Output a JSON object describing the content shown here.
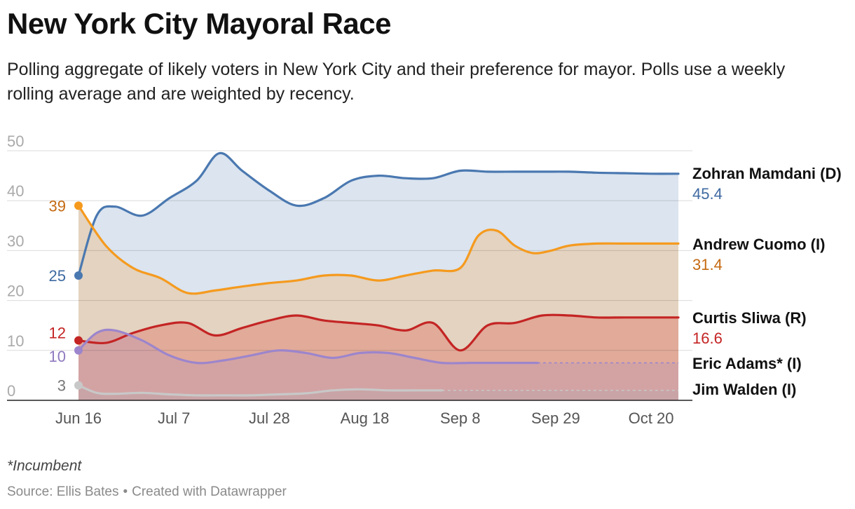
{
  "title": "New York City Mayoral Race",
  "subtitle": "Polling aggregate of likely voters in New York City and their preference for mayor. Polls use a weekly rolling average and are weighted by recency.",
  "footnote": "*Incumbent",
  "source": {
    "text": "Source: Ellis Bates",
    "separator": "•",
    "credit": "Created with Datawrapper"
  },
  "chart_data": {
    "type": "area",
    "title": "New York City Mayoral Race",
    "xlabel": "",
    "ylabel": "",
    "ylim": [
      0,
      50
    ],
    "yticks": [
      0,
      10,
      20,
      30,
      40,
      50
    ],
    "xlim": [
      0,
      132
    ],
    "x_unit": "days since Jun 16",
    "xticks": [
      {
        "x": 0,
        "label": "Jun 16"
      },
      {
        "x": 21,
        "label": "Jul 7"
      },
      {
        "x": 42,
        "label": "Jul 28"
      },
      {
        "x": 63,
        "label": "Aug 18"
      },
      {
        "x": 84,
        "label": "Sep 8"
      },
      {
        "x": 105,
        "label": "Sep 29"
      },
      {
        "x": 126,
        "label": "Oct 20"
      }
    ],
    "series": [
      {
        "name": "Zohran Mamdani (D)",
        "color": "#4a78b0",
        "fill": "#dbe4ef",
        "start_label": "25",
        "end_label": "45.4",
        "points": [
          [
            0,
            25
          ],
          [
            4,
            37
          ],
          [
            8,
            38.8
          ],
          [
            14,
            37
          ],
          [
            20,
            40.5
          ],
          [
            26,
            44
          ],
          [
            31,
            49.5
          ],
          [
            36,
            46
          ],
          [
            42,
            42
          ],
          [
            48,
            39
          ],
          [
            54,
            40.5
          ],
          [
            60,
            44
          ],
          [
            66,
            45
          ],
          [
            72,
            44.5
          ],
          [
            78,
            44.5
          ],
          [
            84,
            46
          ],
          [
            90,
            45.8
          ],
          [
            96,
            45.8
          ],
          [
            102,
            45.8
          ],
          [
            108,
            45.8
          ],
          [
            114,
            45.6
          ],
          [
            120,
            45.5
          ],
          [
            126,
            45.4
          ],
          [
            132,
            45.4
          ]
        ]
      },
      {
        "name": "Andrew Cuomo (I)",
        "color": "#f59a1e",
        "fill": "#e3d3c0",
        "start_label": "39",
        "end_label": "31.4",
        "points": [
          [
            0,
            39
          ],
          [
            6,
            31
          ],
          [
            12,
            26.5
          ],
          [
            18,
            24.5
          ],
          [
            24,
            21.5
          ],
          [
            30,
            22
          ],
          [
            36,
            22.8
          ],
          [
            42,
            23.5
          ],
          [
            48,
            24
          ],
          [
            54,
            25
          ],
          [
            60,
            25
          ],
          [
            66,
            24
          ],
          [
            72,
            25
          ],
          [
            78,
            26
          ],
          [
            84,
            26.5
          ],
          [
            88,
            33
          ],
          [
            92,
            34
          ],
          [
            96,
            31
          ],
          [
            100,
            29.5
          ],
          [
            104,
            30
          ],
          [
            108,
            31
          ],
          [
            114,
            31.4
          ],
          [
            120,
            31.4
          ],
          [
            126,
            31.4
          ],
          [
            132,
            31.4
          ]
        ]
      },
      {
        "name": "Curtis Sliwa (R)",
        "color": "#c42424",
        "fill": "#e1aa99",
        "start_label": "12",
        "end_label": "16.6",
        "points": [
          [
            0,
            12
          ],
          [
            6,
            11.5
          ],
          [
            12,
            13.5
          ],
          [
            18,
            15
          ],
          [
            24,
            15.5
          ],
          [
            30,
            13
          ],
          [
            36,
            14.5
          ],
          [
            42,
            16
          ],
          [
            48,
            17
          ],
          [
            54,
            16
          ],
          [
            60,
            15.5
          ],
          [
            66,
            15
          ],
          [
            72,
            14
          ],
          [
            78,
            15.5
          ],
          [
            84,
            10
          ],
          [
            90,
            15
          ],
          [
            96,
            15.5
          ],
          [
            102,
            17
          ],
          [
            108,
            17
          ],
          [
            114,
            16.6
          ],
          [
            120,
            16.6
          ],
          [
            126,
            16.6
          ],
          [
            132,
            16.6
          ]
        ]
      },
      {
        "name": "Eric Adams* (I)",
        "color": "#9c85cc",
        "fill": "#d3a3a4",
        "start_label": "10",
        "end_label": "",
        "line_end": 101,
        "extends_to": 132,
        "points": [
          [
            0,
            10
          ],
          [
            4,
            13.5
          ],
          [
            8,
            14
          ],
          [
            14,
            12
          ],
          [
            20,
            9
          ],
          [
            26,
            7.5
          ],
          [
            32,
            8
          ],
          [
            38,
            9
          ],
          [
            44,
            10
          ],
          [
            50,
            9.5
          ],
          [
            56,
            8.5
          ],
          [
            62,
            9.5
          ],
          [
            68,
            9.5
          ],
          [
            74,
            8.5
          ],
          [
            80,
            7.5
          ],
          [
            86,
            7.5
          ],
          [
            92,
            7.5
          ],
          [
            96,
            7.5
          ],
          [
            101,
            7.5
          ]
        ]
      },
      {
        "name": "Jim Walden (I)",
        "color": "#c8c8c8",
        "fill": "#c9a4a6",
        "start_label": "3",
        "end_label": "",
        "line_end": 80,
        "extends_to": 132,
        "points": [
          [
            0,
            3
          ],
          [
            4,
            1.5
          ],
          [
            8,
            1.3
          ],
          [
            14,
            1.5
          ],
          [
            20,
            1.2
          ],
          [
            26,
            1
          ],
          [
            32,
            1
          ],
          [
            38,
            1
          ],
          [
            44,
            1.2
          ],
          [
            50,
            1.4
          ],
          [
            56,
            2
          ],
          [
            62,
            2.2
          ],
          [
            68,
            2
          ],
          [
            74,
            2
          ],
          [
            80,
            2
          ]
        ]
      }
    ]
  }
}
